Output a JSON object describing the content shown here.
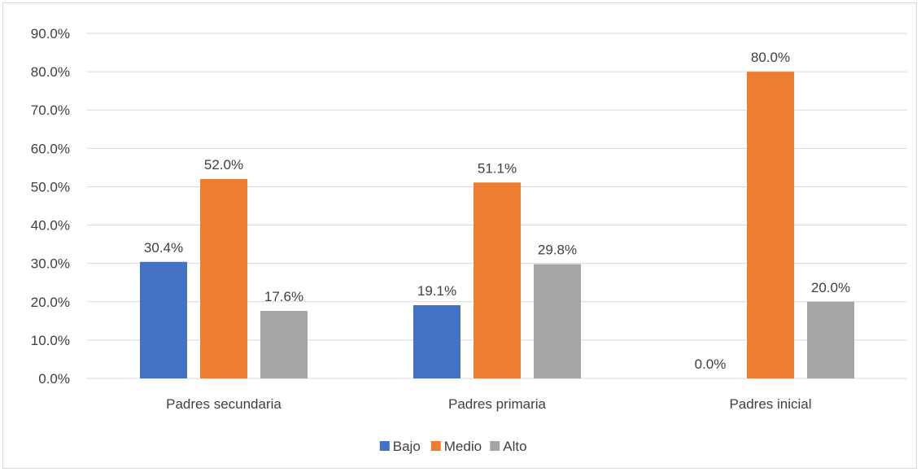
{
  "chart_data": {
    "type": "bar",
    "categories": [
      "Padres secundaria",
      "Padres primaria",
      "Padres inicial"
    ],
    "series": [
      {
        "name": "Bajo",
        "color": "#4472c4",
        "values": [
          30.4,
          19.1,
          0.0
        ],
        "labels": [
          "30.4%",
          "19.1%",
          "0.0%"
        ]
      },
      {
        "name": "Medio",
        "color": "#ed7d31",
        "values": [
          52.0,
          51.1,
          80.0
        ],
        "labels": [
          "52.0%",
          "51.1%",
          "80.0%"
        ]
      },
      {
        "name": "Alto",
        "color": "#a5a5a5",
        "values": [
          17.6,
          29.8,
          20.0
        ],
        "labels": [
          "17.6%",
          "29.8%",
          "20.0%"
        ]
      }
    ],
    "ylim": [
      0,
      90
    ],
    "yticks": [
      "0.0%",
      "10.0%",
      "20.0%",
      "30.0%",
      "40.0%",
      "50.0%",
      "60.0%",
      "70.0%",
      "80.0%",
      "90.0%"
    ],
    "ytick_values": [
      0,
      10,
      20,
      30,
      40,
      50,
      60,
      70,
      80,
      90
    ],
    "grid": true,
    "legend_position": "bottom",
    "title": "",
    "xlabel": "",
    "ylabel": ""
  }
}
